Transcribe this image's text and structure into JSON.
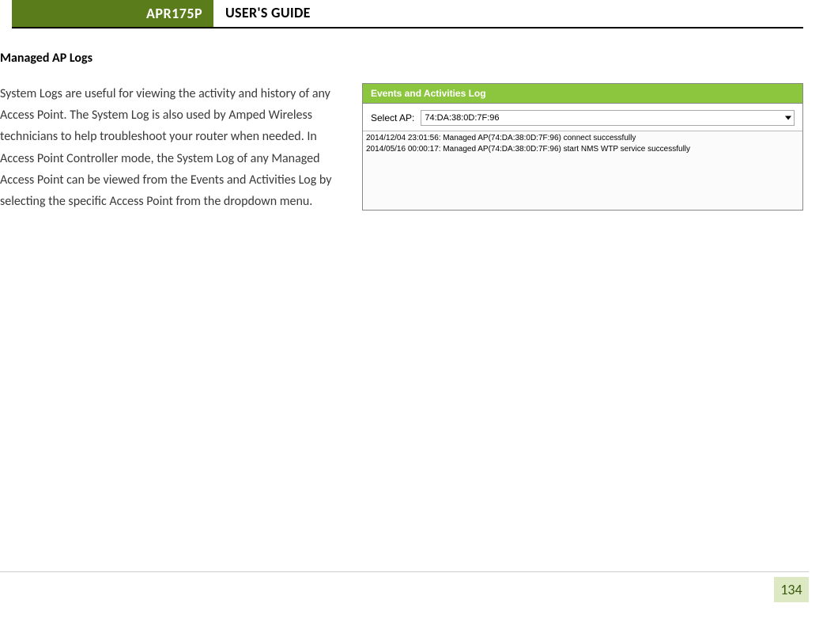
{
  "header": {
    "badge": "APR175P",
    "title": "USER'S GUIDE",
    "badge_bg": "#5a7c1a",
    "badge_fg": "#ffffff"
  },
  "section": {
    "heading": "Managed AP Logs",
    "body": "System Logs are useful for viewing the activity and history of any Access Point. The System Log is also used by Amped Wireless technicians to help troubleshoot your router when needed.  In Access Point Controller mode, the System Log of any Managed Access Point can be viewed from the Events and Activities Log by selecting the specific Access Point from the dropdown menu."
  },
  "figure": {
    "panel_title": "Events and Activities Log",
    "panel_title_bg": "#8cc63f",
    "panel_title_fg": "#ffffff",
    "select_label": "Select AP:",
    "selected_ap": "74:DA:38:0D:7F:96",
    "log_lines": [
      "2014/12/04 23:01:56: Managed AP(74:DA:38:0D:7F:96) connect successfully",
      "2014/05/16 00:00:17: Managed AP(74:DA:38:0D:7F:96) start NMS WTP service successfully"
    ]
  },
  "page_number": "134",
  "colors": {
    "page_number_bg": "#dde9c3",
    "page_number_fg": "#3a5a0f",
    "body_text": "#3a3a3a"
  }
}
